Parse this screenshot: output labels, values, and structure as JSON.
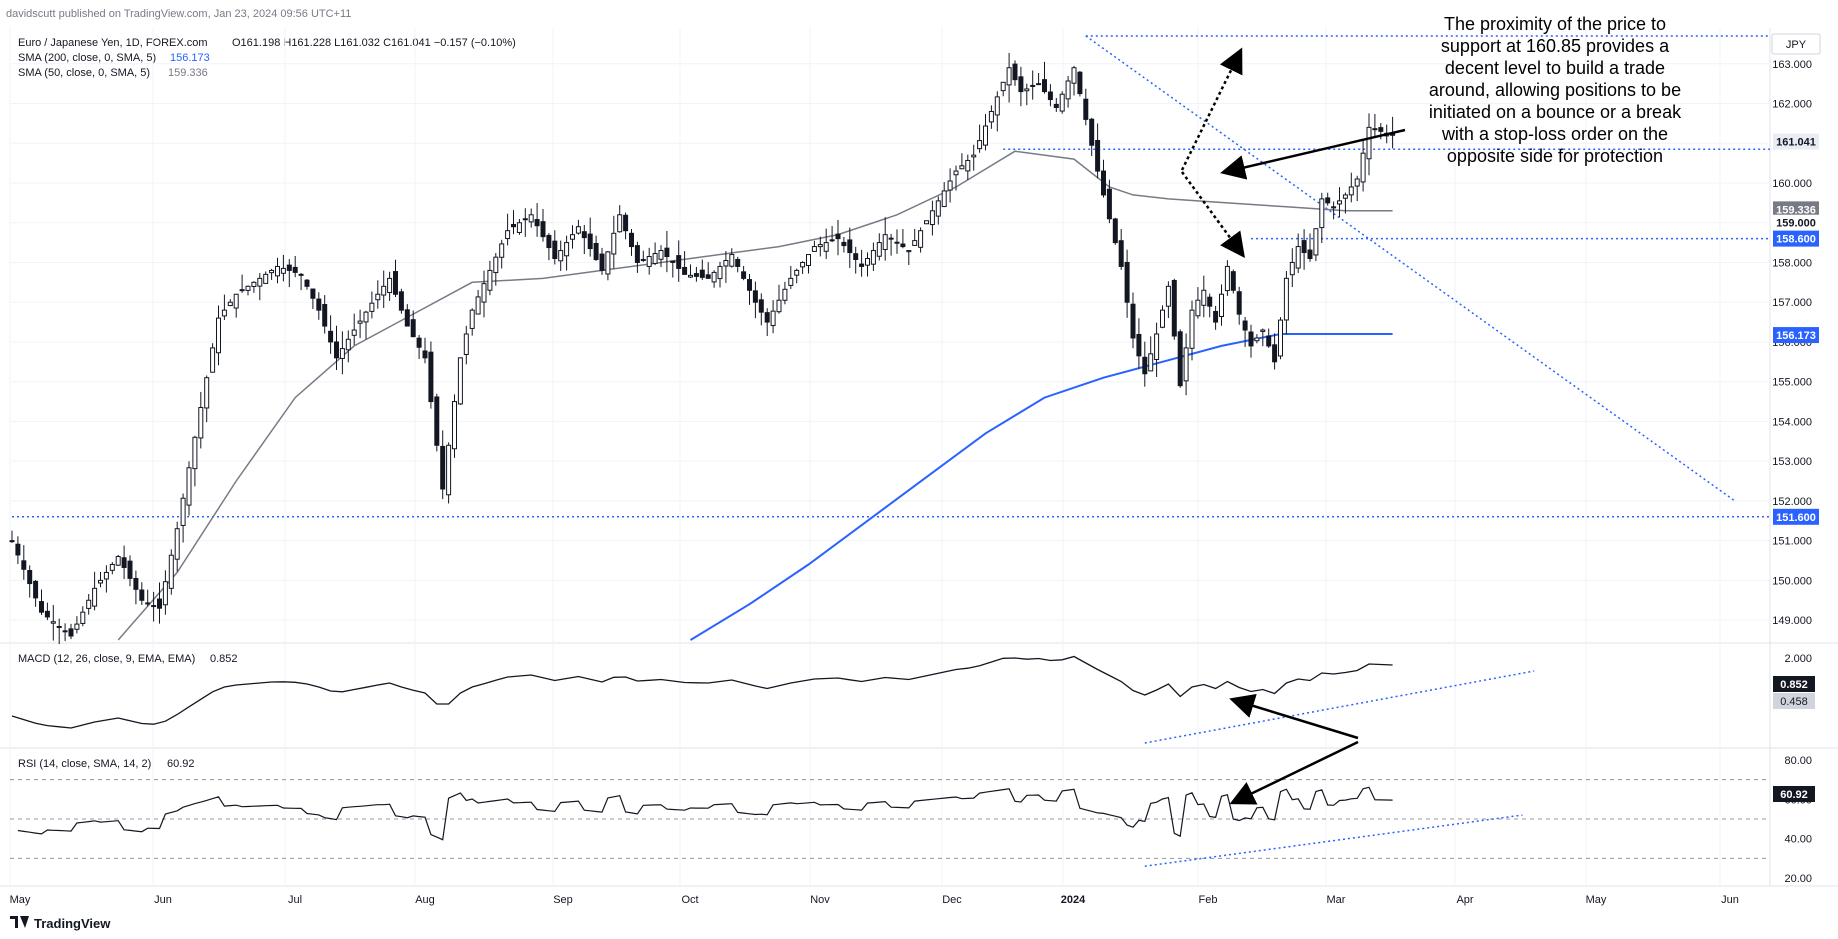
{
  "header": {
    "publisher": "davidscutt published on TradingView.com, Jan 23, 2024 09:56 UTC+11",
    "symbol_line": "Euro / Japanese Yen, 1D, FOREX.com",
    "ohlc": "O161.198  H161.228  L161.032  C161.041  −0.157 (−0.10%)",
    "sma200_label": "SMA (200, close, 0, SMA, 5)",
    "sma200_value": "156.173",
    "sma50_label": "SMA (50, close, 0, SMA, 5)",
    "sma50_value": "159.336",
    "currency": "JPY"
  },
  "annotation": {
    "lines": [
      "The proximity of the price to",
      "support at 160.85 provides a",
      "decent level to build a trade",
      "around, allowing positions to be",
      "initiated on a bounce or a break",
      "with a stop-loss order on the",
      "opposite side for protection"
    ]
  },
  "macd": {
    "label": "MACD (12, 26, close, 9, EMA, EMA)",
    "value": "0.852",
    "signal_value": "0.458"
  },
  "rsi": {
    "label": "RSI (14, close, SMA, 14, 2)",
    "value": "60.92"
  },
  "footer": {
    "brand": "TradingView"
  },
  "colors": {
    "candle": "#131722",
    "sma200": "#2962ff",
    "sma50": "#787b86",
    "dotted": "#2962ff",
    "grid": "#f0f3fa"
  },
  "chart_data": [
    {
      "type": "candlestick",
      "title": "Euro / Japanese Yen, 1D, FOREX.com",
      "x_ticks": [
        "May",
        "Jun",
        "Jul",
        "Aug",
        "Sep",
        "Oct",
        "Nov",
        "Dec",
        "2024",
        "Feb",
        "Mar",
        "Apr",
        "May",
        "Jun"
      ],
      "y_ticks": [
        149,
        150,
        151,
        152,
        153,
        154,
        155,
        156,
        157,
        158,
        159,
        160,
        161,
        162,
        163
      ],
      "ylim": [
        148.5,
        163.9
      ],
      "price_labels": [
        "161.041",
        "159.336",
        "159.000",
        "158.600",
        "156.173",
        "151.600"
      ],
      "close_path": [
        [
          0,
          151.0
        ],
        [
          5,
          149.2
        ],
        [
          10,
          148.6
        ],
        [
          14,
          149.8
        ],
        [
          18,
          150.6
        ],
        [
          22,
          149.5
        ],
        [
          25,
          149.3
        ],
        [
          28,
          151.3
        ],
        [
          31,
          153.6
        ],
        [
          35,
          156.6
        ],
        [
          38,
          157.2
        ],
        [
          42,
          157.6
        ],
        [
          45,
          157.9
        ],
        [
          49,
          157.7
        ],
        [
          52,
          156.8
        ],
        [
          55,
          155.6
        ],
        [
          58,
          156.3
        ],
        [
          62,
          157.2
        ],
        [
          64,
          157.6
        ],
        [
          67,
          156.4
        ],
        [
          70,
          155.6
        ],
        [
          73,
          152.3
        ],
        [
          76,
          155.6
        ],
        [
          78,
          156.8
        ],
        [
          81,
          157.8
        ],
        [
          84,
          158.8
        ],
        [
          88,
          159.2
        ],
        [
          92,
          158.1
        ],
        [
          96,
          158.9
        ],
        [
          100,
          157.8
        ],
        [
          103,
          159.2
        ],
        [
          106,
          158.0
        ],
        [
          110,
          158.3
        ],
        [
          114,
          157.7
        ],
        [
          118,
          157.6
        ],
        [
          122,
          158.2
        ],
        [
          126,
          157.0
        ],
        [
          128,
          156.5
        ],
        [
          132,
          157.6
        ],
        [
          136,
          158.4
        ],
        [
          140,
          158.6
        ],
        [
          144,
          157.9
        ],
        [
          148,
          158.7
        ],
        [
          152,
          158.3
        ],
        [
          156,
          159.3
        ],
        [
          160,
          160.3
        ],
        [
          163,
          160.7
        ],
        [
          166,
          161.8
        ],
        [
          169,
          162.9
        ],
        [
          171,
          162.3
        ],
        [
          174,
          162.5
        ],
        [
          177,
          161.9
        ],
        [
          180,
          162.9
        ],
        [
          182,
          161.6
        ],
        [
          184,
          160.3
        ],
        [
          186,
          159.1
        ],
        [
          188,
          157.9
        ],
        [
          190,
          156.1
        ],
        [
          192,
          155.2
        ],
        [
          194,
          156.2
        ],
        [
          196,
          157.4
        ],
        [
          198,
          154.9
        ],
        [
          200,
          156.8
        ],
        [
          202,
          157.3
        ],
        [
          204,
          156.5
        ],
        [
          206,
          157.9
        ],
        [
          208,
          156.7
        ],
        [
          210,
          155.9
        ],
        [
          212,
          156.3
        ],
        [
          214,
          155.5
        ],
        [
          216,
          157.6
        ],
        [
          218,
          158.4
        ],
        [
          220,
          158.1
        ],
        [
          222,
          159.6
        ],
        [
          224,
          159.4
        ],
        [
          226,
          159.7
        ],
        [
          228,
          160.1
        ],
        [
          230,
          161.4
        ],
        [
          232,
          161.3
        ],
        [
          234,
          161.2
        ]
      ],
      "sma50_path": [
        [
          18,
          148.5
        ],
        [
          28,
          150.2
        ],
        [
          38,
          152.5
        ],
        [
          48,
          154.6
        ],
        [
          58,
          155.9
        ],
        [
          68,
          156.7
        ],
        [
          78,
          157.5
        ],
        [
          90,
          157.6
        ],
        [
          100,
          157.8
        ],
        [
          110,
          158.0
        ],
        [
          120,
          158.2
        ],
        [
          130,
          158.4
        ],
        [
          140,
          158.7
        ],
        [
          150,
          159.2
        ],
        [
          160,
          159.9
        ],
        [
          170,
          160.8
        ],
        [
          180,
          160.6
        ],
        [
          186,
          159.9
        ],
        [
          190,
          159.7
        ],
        [
          196,
          159.6
        ],
        [
          206,
          159.5
        ],
        [
          216,
          159.4
        ],
        [
          226,
          159.3
        ],
        [
          234,
          159.3
        ]
      ],
      "sma200_path": [
        [
          115,
          148.5
        ],
        [
          125,
          149.4
        ],
        [
          135,
          150.4
        ],
        [
          145,
          151.5
        ],
        [
          155,
          152.6
        ],
        [
          165,
          153.7
        ],
        [
          175,
          154.6
        ],
        [
          185,
          155.1
        ],
        [
          195,
          155.5
        ],
        [
          205,
          155.9
        ],
        [
          215,
          156.2
        ],
        [
          234,
          156.2
        ]
      ],
      "levels": [
        {
          "name": "Support 160.85",
          "value": 160.85,
          "from_x": 168,
          "to_x": 300
        },
        {
          "name": "Support 158.6",
          "value": 158.6,
          "from_x": 210,
          "to_x": 300
        },
        {
          "name": "Support 151.6",
          "value": 151.6,
          "from_x": 0,
          "to_x": 300
        },
        {
          "name": "High",
          "value": 163.7,
          "from_x": 182,
          "to_x": 300
        }
      ],
      "trendline": {
        "from": [
          182,
          163.7
        ],
        "to": [
          292,
          152.0
        ]
      }
    },
    {
      "type": "line",
      "title": "MACD (12, 26, close, 9, EMA, EMA)",
      "y_ticks": [
        2.0
      ],
      "value": 0.852,
      "signal": 0.458
    },
    {
      "type": "line",
      "title": "RSI (14, close, SMA, 14, 2)",
      "y_ticks": [
        80.0,
        60.0,
        40.0,
        20.0
      ],
      "value": 60.92
    }
  ]
}
